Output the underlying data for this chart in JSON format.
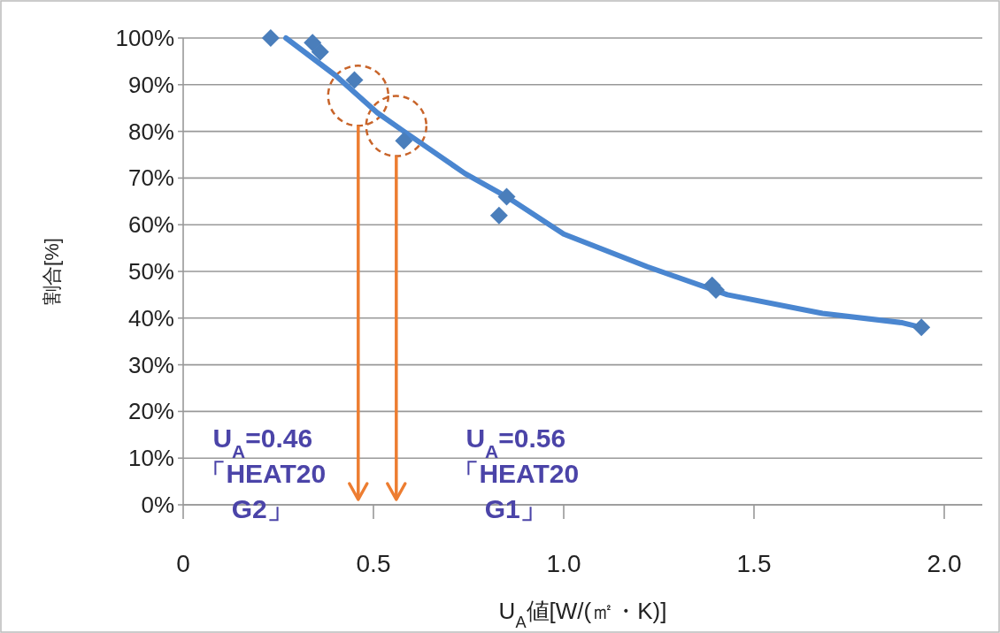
{
  "chart_data": {
    "type": "scatter",
    "xlabel": "U$_{A}$値[W/(㎡・K)]",
    "ylabel": "割合[%]",
    "xlim": [
      0,
      2.1
    ],
    "xticks": [
      0,
      0.5,
      {
        "value": 1,
        "label": "1.0"
      },
      1.5,
      {
        "value": 2,
        "label": "2.0"
      }
    ],
    "ylim": [
      0,
      100
    ],
    "yticks": [
      {
        "value": 0,
        "label": "0%"
      },
      {
        "value": 10,
        "label": "10%"
      },
      {
        "value": 20,
        "label": "20%"
      },
      {
        "value": 30,
        "label": "30%"
      },
      {
        "value": 40,
        "label": "40%"
      },
      {
        "value": 50,
        "label": "50%"
      },
      {
        "value": 60,
        "label": "60%"
      },
      {
        "value": 70,
        "label": "70%"
      },
      {
        "value": 80,
        "label": "80%"
      },
      {
        "value": 90,
        "label": "90%"
      },
      {
        "value": 100,
        "label": "100%"
      }
    ],
    "grid": "y",
    "series": [
      {
        "marker": "diamond",
        "color": "#4a7ebb",
        "x": [
          0.23,
          0.34,
          0.36,
          0.45,
          0.58,
          0.85,
          0.83,
          1.39,
          1.4,
          1.94
        ],
        "values": [
          100,
          99,
          97,
          91,
          78,
          66,
          62,
          47,
          46,
          38
        ]
      },
      {
        "type": "line",
        "marker": "none",
        "color": "#4a86d0",
        "x": [
          0.27,
          0.4,
          0.51,
          0.58,
          0.74,
          0.85,
          1.0,
          1.22,
          1.43,
          1.68,
          1.89,
          1.94
        ],
        "values": [
          100,
          92,
          84,
          80,
          71,
          66,
          58,
          51,
          45,
          41,
          39,
          38
        ]
      }
    ],
    "ref_lines": [
      {
        "axis": "x",
        "value": 0.46,
        "label": "U$_{A}$=0.46\n「HEAT20\nG2」",
        "color": "#ed7d31"
      },
      {
        "axis": "x",
        "value": 0.56,
        "label": "U$_{A}$=0.56\n「HEAT20\nG1」",
        "color": "#ed7d31"
      }
    ]
  }
}
